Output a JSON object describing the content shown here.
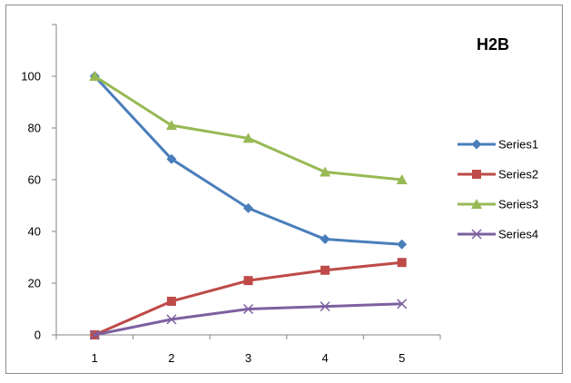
{
  "chart_data": {
    "type": "line",
    "title": "H2B",
    "xlabel": "",
    "ylabel": "",
    "categories": [
      "1",
      "2",
      "3",
      "4",
      "5"
    ],
    "yticks": [
      "0",
      "20",
      "40",
      "60",
      "80",
      "100"
    ],
    "ylim": [
      0,
      120
    ],
    "grid": false,
    "legend_position": "right",
    "series": [
      {
        "name": "Series1",
        "values": [
          100,
          68,
          49,
          37,
          35
        ],
        "color": "#4a7ebb",
        "marker": "diamond"
      },
      {
        "name": "Series2",
        "values": [
          0,
          13,
          21,
          25,
          28
        ],
        "color": "#be4b48",
        "marker": "square"
      },
      {
        "name": "Series3",
        "values": [
          100,
          81,
          76,
          63,
          60
        ],
        "color": "#98b954",
        "marker": "triangle"
      },
      {
        "name": "Series4",
        "values": [
          0,
          6,
          10,
          11,
          12
        ],
        "color": "#7d60a0",
        "marker": "x"
      }
    ]
  }
}
